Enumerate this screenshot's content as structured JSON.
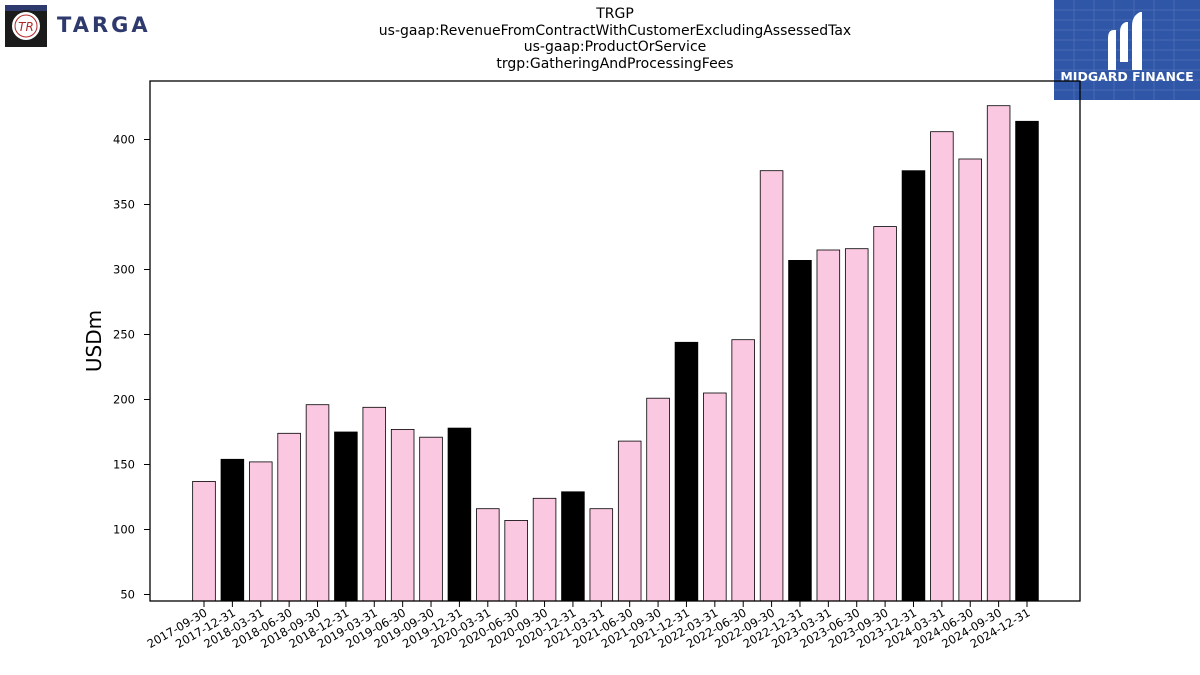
{
  "header": {
    "company_logo": {
      "icon": "targa-tr-logo-icon",
      "text": "TARGA",
      "color": "#2e3a6e"
    },
    "brand_logo": {
      "icon": "midgard-m-logo-icon",
      "text": "MIDGARD FINANCE",
      "color": "#2f56a7"
    }
  },
  "chart_data": {
    "type": "bar",
    "title_lines": [
      "TRGP",
      "us-gaap:RevenueFromContractWithCustomerExcludingAssessedTax",
      "us-gaap:ProductOrService",
      "trgp:GatheringAndProcessingFees"
    ],
    "xlabel": "",
    "ylabel": "USDm",
    "ylim": [
      45,
      445
    ],
    "yticks": [
      50,
      100,
      150,
      200,
      250,
      300,
      350,
      400
    ],
    "grid": false,
    "legend": "none",
    "colors": {
      "quarter": "#fbc8e1",
      "year_end": "#000000"
    },
    "categories": [
      "2017-09-30",
      "2017-12-31",
      "2018-03-31",
      "2018-06-30",
      "2018-09-30",
      "2018-12-31",
      "2019-03-31",
      "2019-06-30",
      "2019-09-30",
      "2019-12-31",
      "2020-03-31",
      "2020-06-30",
      "2020-09-30",
      "2020-12-31",
      "2021-03-31",
      "2021-06-30",
      "2021-09-30",
      "2021-12-31",
      "2022-03-31",
      "2022-06-30",
      "2022-09-30",
      "2022-12-31",
      "2023-03-31",
      "2023-06-30",
      "2023-09-30",
      "2023-12-31",
      "2024-03-31",
      "2024-06-30",
      "2024-09-30",
      "2024-12-31"
    ],
    "values": [
      137,
      154,
      152,
      174,
      196,
      175,
      194,
      177,
      171,
      178,
      116,
      107,
      124,
      129,
      116,
      168,
      201,
      244,
      205,
      246,
      376,
      307,
      315,
      316,
      333,
      376,
      406,
      385,
      426,
      414
    ]
  }
}
